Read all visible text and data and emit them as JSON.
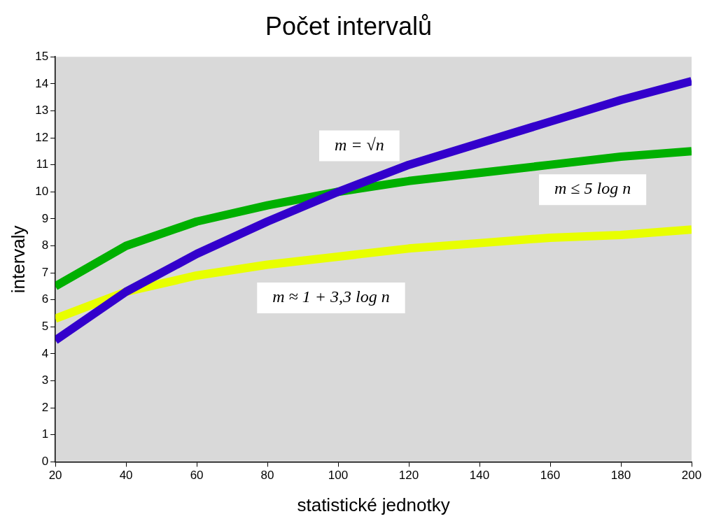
{
  "chart_data": {
    "type": "line",
    "title": "Počet intervalů",
    "xlabel": "statistické jednotky",
    "ylabel": "intervaly",
    "x": [
      20,
      40,
      60,
      80,
      100,
      120,
      140,
      160,
      180,
      200
    ],
    "xlim": [
      20,
      200
    ],
    "xticks": [
      20,
      40,
      60,
      80,
      100,
      120,
      140,
      160,
      180,
      200
    ],
    "ylim": [
      0,
      15
    ],
    "yticks": [
      0,
      1,
      2,
      3,
      4,
      5,
      6,
      7,
      8,
      9,
      10,
      11,
      12,
      13,
      14,
      15
    ],
    "marker": "none",
    "line_style": "solid",
    "series": [
      {
        "name": "m = √n",
        "color": "#3300cc",
        "values": [
          4.5,
          6.3,
          7.7,
          8.9,
          10,
          11,
          11.8,
          12.6,
          13.4,
          14.1
        ]
      },
      {
        "name": "m ≤ 5 log n",
        "color": "#00b000",
        "values": [
          6.5,
          8.0,
          8.9,
          9.5,
          10,
          10.4,
          10.7,
          11.0,
          11.3,
          11.5
        ]
      },
      {
        "name": "m ≈ 1 + 3,3 log n",
        "color": "#e8ff00",
        "values": [
          5.3,
          6.3,
          6.9,
          7.3,
          7.6,
          7.9,
          8.1,
          8.3,
          8.4,
          8.6
        ]
      }
    ]
  }
}
